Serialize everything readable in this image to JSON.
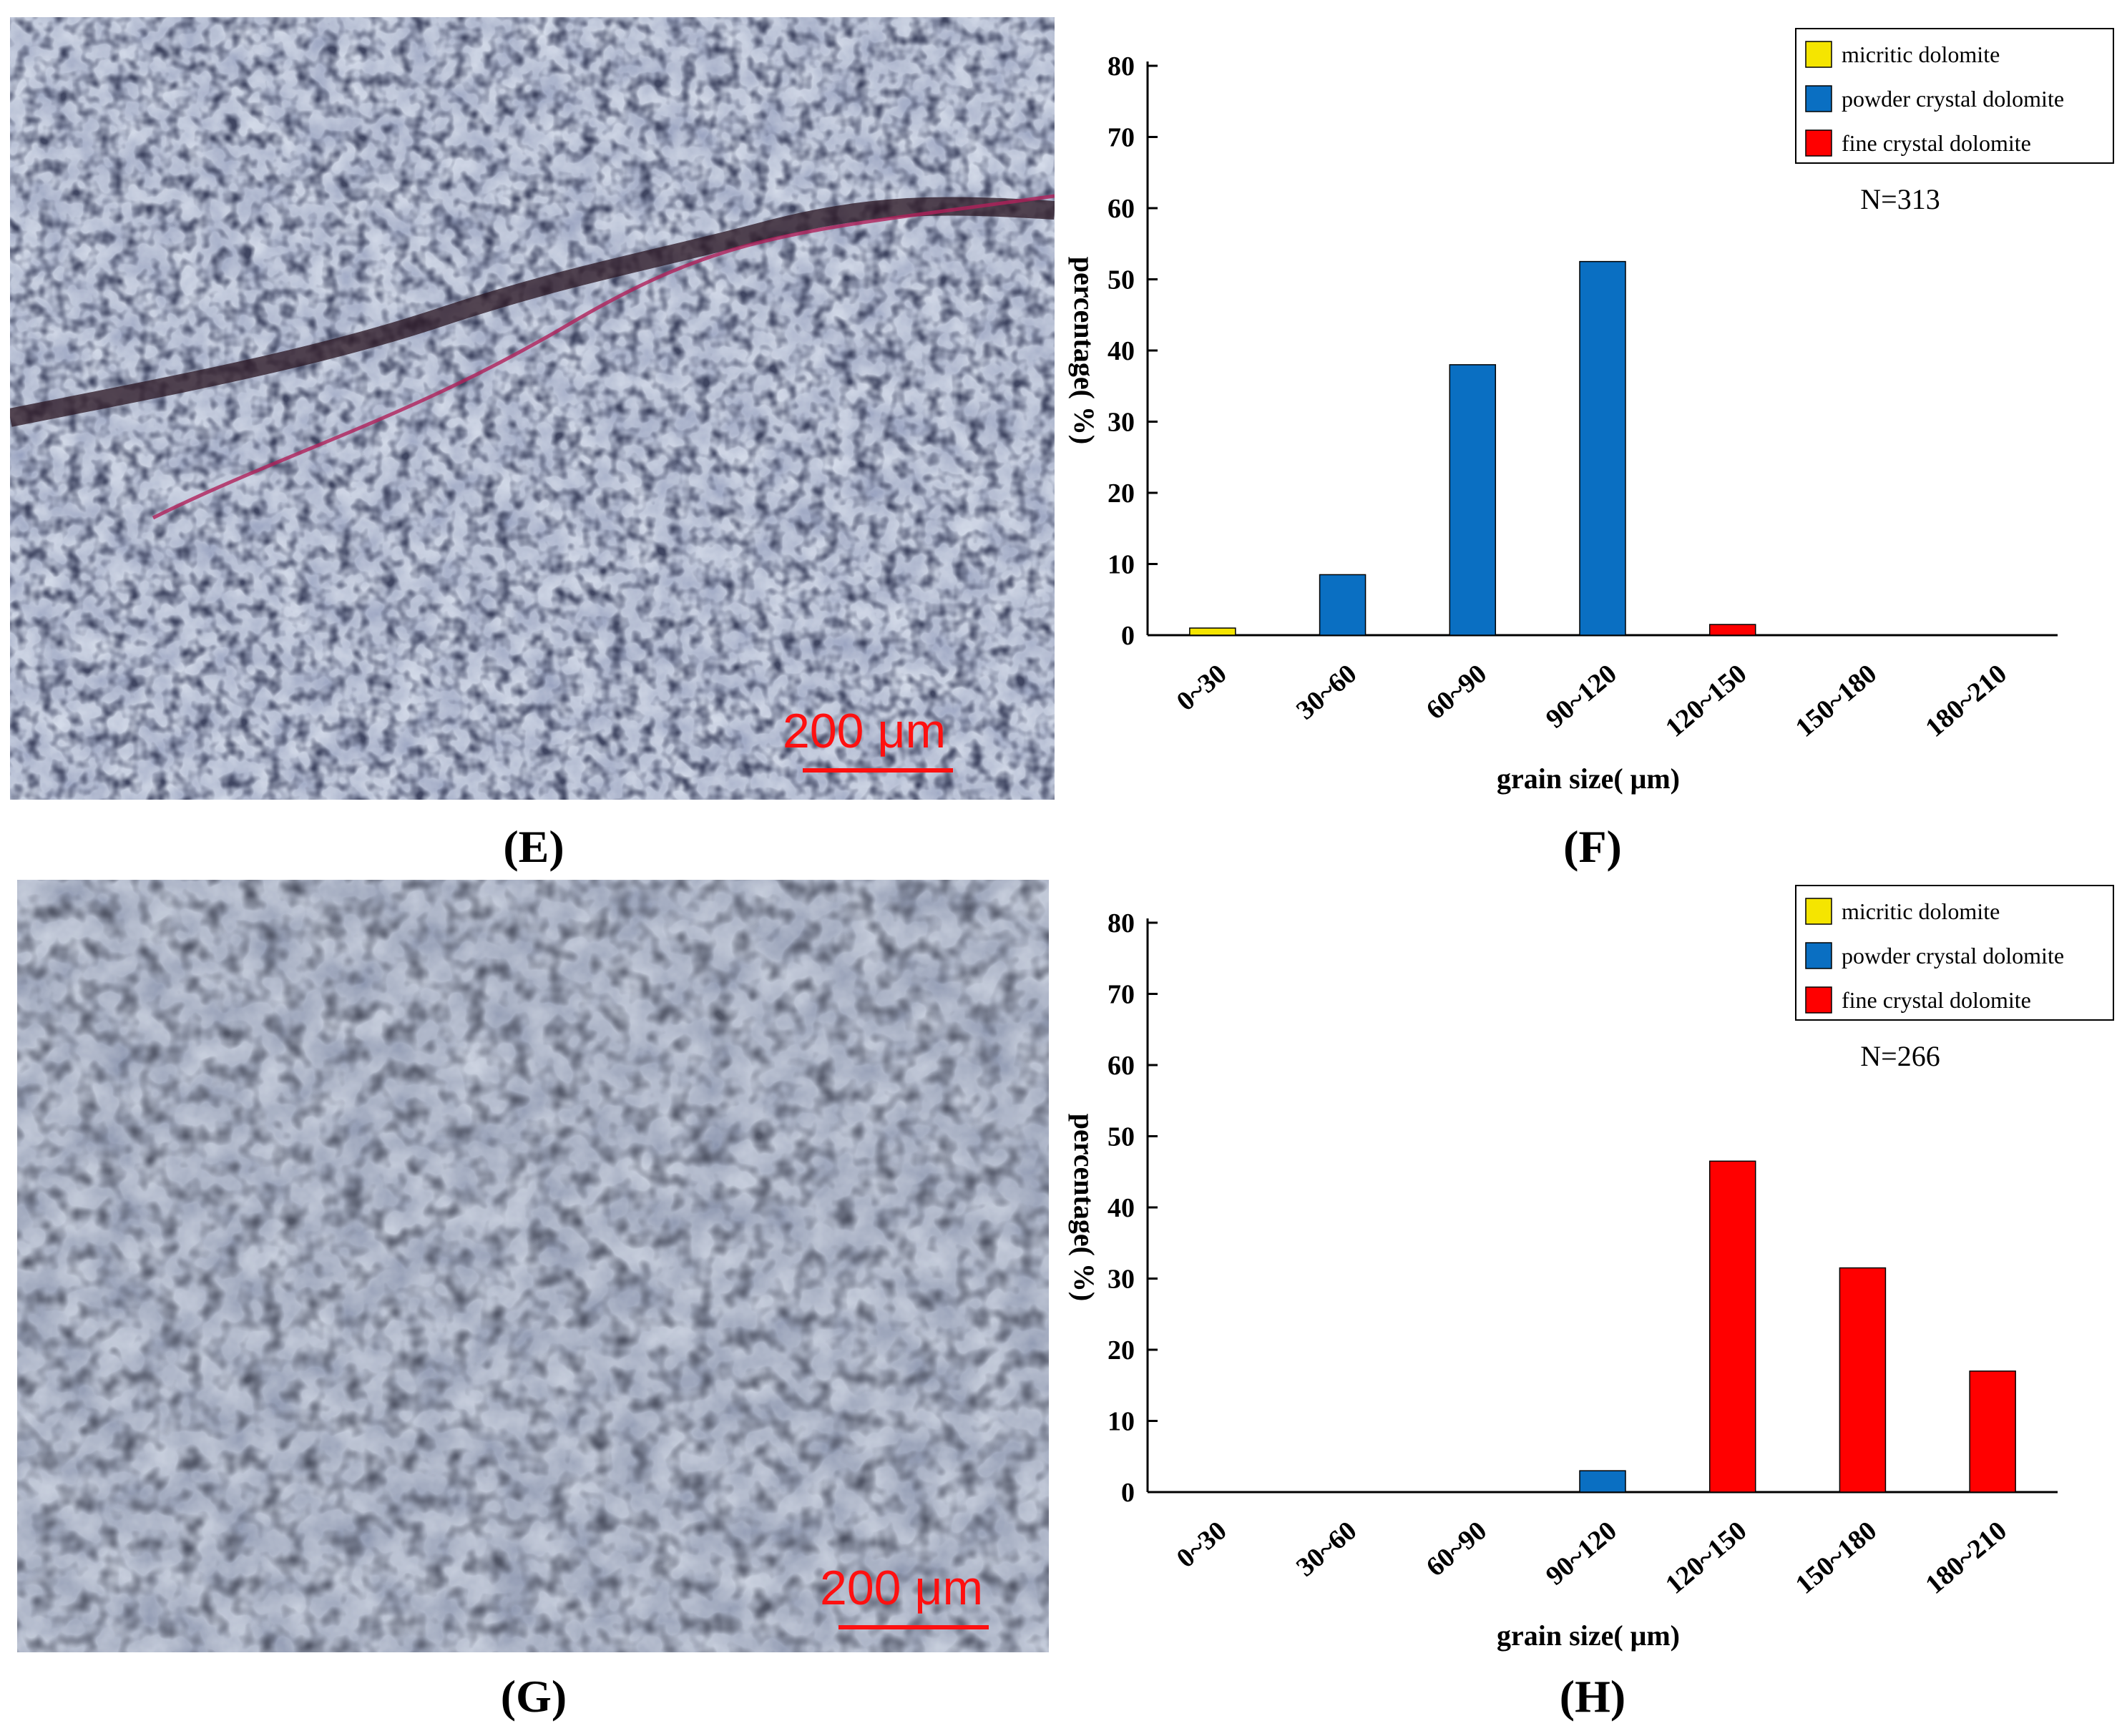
{
  "panels": {
    "E": {
      "label": "(E)",
      "scalebar": "200 μm"
    },
    "F": {
      "label": "(F)"
    },
    "G": {
      "label": "(G)",
      "scalebar": "200 μm"
    },
    "H": {
      "label": "(H)"
    }
  },
  "colors": {
    "micritic": "#f5e500",
    "powder": "#0a6fc2",
    "fine": "#ff0000",
    "photo_E_base": "#8fa0c8",
    "photo_G_base": "#7c8aae"
  },
  "chart_data": [
    {
      "type": "bar",
      "panel": "F",
      "categories": [
        "0~30",
        "30~60",
        "60~90",
        "90~120",
        "120~150",
        "150~180",
        "180~210"
      ],
      "values": [
        1,
        8.5,
        38,
        52.5,
        1.5,
        0,
        0
      ],
      "bar_class": [
        "micritic dolomite",
        "powder crystal dolomite",
        "powder crystal dolomite",
        "powder crystal dolomite",
        "fine crystal dolomite",
        "",
        ""
      ],
      "xlabel": "grain size( μm)",
      "ylabel": "percentage( %)",
      "ylim": [
        0,
        80
      ],
      "yticks": [
        0,
        10,
        20,
        30,
        40,
        50,
        60,
        70,
        80
      ],
      "legend": [
        "micritic dolomite",
        "powder crystal dolomite",
        "fine crystal dolomite"
      ],
      "legend_position": "top-right",
      "annotation": "N=313",
      "grid": false
    },
    {
      "type": "bar",
      "panel": "H",
      "categories": [
        "0~30",
        "30~60",
        "60~90",
        "90~120",
        "120~150",
        "150~180",
        "180~210"
      ],
      "values": [
        0,
        0,
        0,
        3,
        46.5,
        31.5,
        17
      ],
      "bar_class": [
        "",
        "",
        "",
        "powder crystal dolomite",
        "fine crystal dolomite",
        "fine crystal dolomite",
        "fine crystal dolomite"
      ],
      "xlabel": "grain size( μm)",
      "ylabel": "percentage( %)",
      "ylim": [
        0,
        80
      ],
      "yticks": [
        0,
        10,
        20,
        30,
        40,
        50,
        60,
        70,
        80
      ],
      "legend": [
        "micritic dolomite",
        "powder crystal dolomite",
        "fine crystal dolomite"
      ],
      "legend_position": "top-right",
      "annotation": "N=266",
      "grid": false
    }
  ]
}
